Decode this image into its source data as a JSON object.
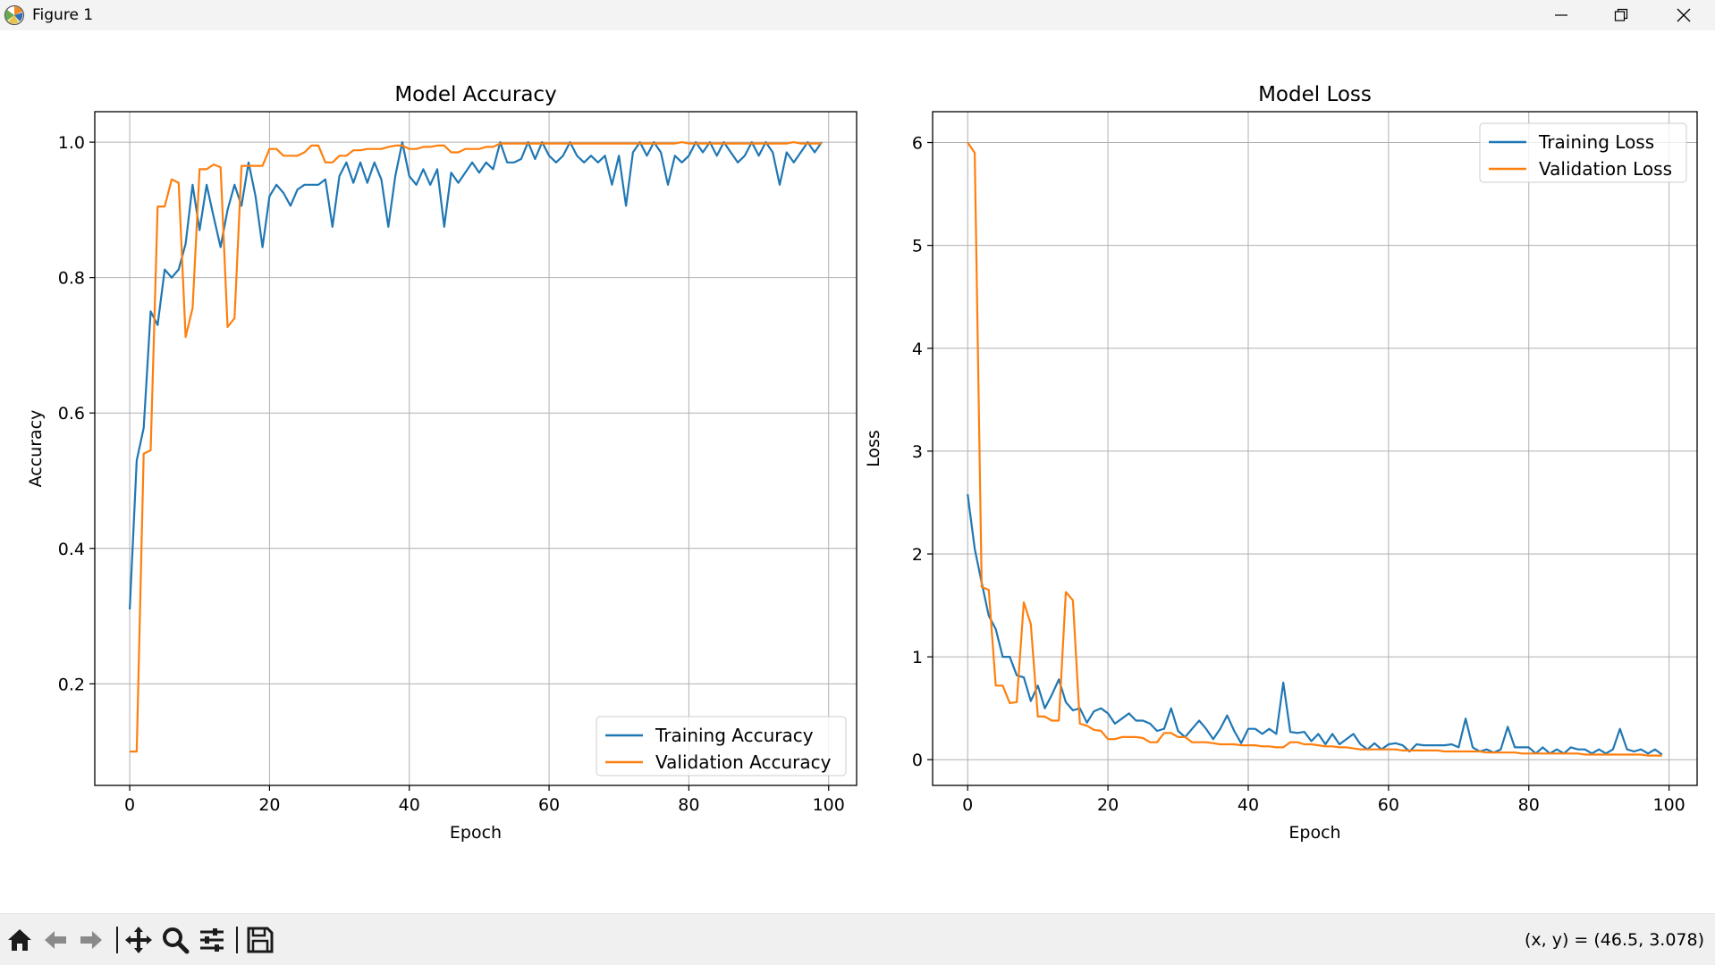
{
  "window": {
    "title": "Figure 1",
    "app_icon": "matplotlib-icon",
    "controls": [
      "minimize-icon",
      "restore-icon",
      "close-icon"
    ]
  },
  "toolbar": {
    "tools": [
      "home-icon",
      "back-arrow-icon",
      "forward-arrow-icon",
      "pan-move-icon",
      "zoom-magnifier-icon",
      "configure-subplots-icon",
      "save-floppy-icon"
    ],
    "coords_label": "(x, y) = (46.5, 3.078)"
  },
  "colors": {
    "training": "#1f77b4",
    "validation": "#ff7f0e",
    "grid": "#b0b0b0"
  },
  "chart_data": [
    {
      "type": "line",
      "title": "Model Accuracy",
      "xlabel": "Epoch",
      "ylabel": "Accuracy",
      "xlim": [
        -5,
        104
      ],
      "ylim": [
        0.05,
        1.045
      ],
      "xticks": [
        0,
        20,
        40,
        60,
        80,
        100
      ],
      "yticks": [
        0.2,
        0.4,
        0.6,
        0.8,
        1.0
      ],
      "xtick_labels": [
        "0",
        "20",
        "40",
        "60",
        "80",
        "100"
      ],
      "ytick_labels": [
        "0.2",
        "0.4",
        "0.6",
        "0.8",
        "1.0"
      ],
      "grid": true,
      "legend": "lower-right",
      "series": [
        {
          "name": "Training Accuracy",
          "color": "#1f77b4",
          "values": [
            0.31,
            0.53,
            0.578,
            0.75,
            0.73,
            0.812,
            0.8,
            0.812,
            0.85,
            0.937,
            0.87,
            0.937,
            0.89,
            0.845,
            0.9,
            0.937,
            0.906,
            0.97,
            0.92,
            0.845,
            0.92,
            0.937,
            0.925,
            0.906,
            0.93,
            0.937,
            0.937,
            0.937,
            0.945,
            0.875,
            0.95,
            0.97,
            0.94,
            0.97,
            0.94,
            0.97,
            0.945,
            0.875,
            0.95,
            1.0,
            0.95,
            0.937,
            0.96,
            0.937,
            0.96,
            0.875,
            0.955,
            0.94,
            0.955,
            0.97,
            0.955,
            0.97,
            0.96,
            1.0,
            0.97,
            0.97,
            0.975,
            1.0,
            0.975,
            1.0,
            0.98,
            0.97,
            0.98,
            1.0,
            0.98,
            0.97,
            0.98,
            0.97,
            0.98,
            0.937,
            0.98,
            0.906,
            0.985,
            1.0,
            0.98,
            1.0,
            0.985,
            0.937,
            0.98,
            0.97,
            0.98,
            1.0,
            0.985,
            1.0,
            0.98,
            1.0,
            0.985,
            0.97,
            0.98,
            1.0,
            0.98,
            1.0,
            0.985,
            0.937,
            0.985,
            0.97,
            0.985,
            1.0,
            0.985,
            1.0
          ]
        },
        {
          "name": "Validation Accuracy",
          "color": "#ff7f0e",
          "values": [
            0.1,
            0.1,
            0.54,
            0.545,
            0.905,
            0.905,
            0.945,
            0.94,
            0.712,
            0.755,
            0.96,
            0.96,
            0.967,
            0.963,
            0.727,
            0.74,
            0.965,
            0.965,
            0.965,
            0.965,
            0.99,
            0.99,
            0.98,
            0.98,
            0.98,
            0.985,
            0.995,
            0.995,
            0.97,
            0.97,
            0.98,
            0.98,
            0.988,
            0.988,
            0.99,
            0.99,
            0.99,
            0.993,
            0.995,
            0.995,
            0.99,
            0.99,
            0.993,
            0.993,
            0.995,
            0.995,
            0.985,
            0.985,
            0.99,
            0.99,
            0.99,
            0.993,
            0.993,
            0.998,
            0.998,
            0.998,
            0.998,
            0.998,
            0.998,
            0.998,
            0.998,
            0.998,
            0.998,
            0.998,
            0.998,
            0.998,
            0.998,
            0.998,
            0.998,
            0.998,
            0.998,
            0.998,
            0.998,
            0.998,
            0.998,
            0.998,
            0.998,
            0.998,
            0.998,
            1.0,
            0.998,
            0.998,
            0.998,
            0.998,
            0.998,
            0.998,
            0.998,
            0.998,
            0.998,
            0.998,
            0.998,
            0.998,
            0.998,
            0.998,
            0.998,
            1.0,
            0.998,
            0.998,
            0.998,
            0.998
          ]
        }
      ]
    },
    {
      "type": "line",
      "title": "Model Loss",
      "xlabel": "Epoch",
      "ylabel": "Loss",
      "xlim": [
        -5,
        104
      ],
      "ylim": [
        -0.25,
        6.3
      ],
      "xticks": [
        0,
        20,
        40,
        60,
        80,
        100
      ],
      "yticks": [
        0,
        1,
        2,
        3,
        4,
        5,
        6
      ],
      "xtick_labels": [
        "0",
        "20",
        "40",
        "60",
        "80",
        "100"
      ],
      "ytick_labels": [
        "0",
        "1",
        "2",
        "3",
        "4",
        "5",
        "6"
      ],
      "grid": true,
      "legend": "upper-right",
      "series": [
        {
          "name": "Training Loss",
          "color": "#1f77b4",
          "values": [
            2.58,
            2.05,
            1.72,
            1.4,
            1.27,
            1.0,
            1.0,
            0.82,
            0.8,
            0.57,
            0.72,
            0.5,
            0.63,
            0.78,
            0.56,
            0.48,
            0.5,
            0.36,
            0.47,
            0.5,
            0.45,
            0.35,
            0.4,
            0.45,
            0.38,
            0.38,
            0.35,
            0.28,
            0.3,
            0.5,
            0.28,
            0.22,
            0.3,
            0.38,
            0.3,
            0.2,
            0.3,
            0.43,
            0.28,
            0.16,
            0.3,
            0.3,
            0.25,
            0.3,
            0.25,
            0.75,
            0.27,
            0.26,
            0.27,
            0.18,
            0.25,
            0.15,
            0.25,
            0.15,
            0.2,
            0.25,
            0.15,
            0.1,
            0.16,
            0.1,
            0.15,
            0.16,
            0.14,
            0.08,
            0.15,
            0.14,
            0.14,
            0.14,
            0.14,
            0.15,
            0.12,
            0.4,
            0.12,
            0.08,
            0.1,
            0.07,
            0.1,
            0.32,
            0.12,
            0.12,
            0.12,
            0.06,
            0.12,
            0.06,
            0.1,
            0.06,
            0.12,
            0.1,
            0.1,
            0.06,
            0.1,
            0.06,
            0.1,
            0.3,
            0.1,
            0.08,
            0.1,
            0.06,
            0.1,
            0.05
          ]
        },
        {
          "name": "Validation Loss",
          "color": "#ff7f0e",
          "values": [
            6.0,
            5.9,
            1.68,
            1.65,
            0.72,
            0.72,
            0.55,
            0.56,
            1.53,
            1.32,
            0.42,
            0.42,
            0.38,
            0.38,
            1.63,
            1.55,
            0.35,
            0.33,
            0.29,
            0.28,
            0.2,
            0.2,
            0.22,
            0.22,
            0.22,
            0.21,
            0.17,
            0.17,
            0.26,
            0.26,
            0.22,
            0.22,
            0.17,
            0.17,
            0.17,
            0.16,
            0.15,
            0.15,
            0.15,
            0.14,
            0.14,
            0.14,
            0.13,
            0.13,
            0.12,
            0.12,
            0.17,
            0.17,
            0.15,
            0.15,
            0.14,
            0.13,
            0.13,
            0.12,
            0.12,
            0.11,
            0.1,
            0.1,
            0.1,
            0.1,
            0.1,
            0.1,
            0.09,
            0.09,
            0.09,
            0.09,
            0.09,
            0.09,
            0.08,
            0.08,
            0.08,
            0.08,
            0.08,
            0.08,
            0.07,
            0.07,
            0.07,
            0.07,
            0.07,
            0.06,
            0.06,
            0.06,
            0.06,
            0.06,
            0.06,
            0.06,
            0.06,
            0.06,
            0.05,
            0.05,
            0.05,
            0.05,
            0.05,
            0.05,
            0.05,
            0.05,
            0.05,
            0.04,
            0.04,
            0.04
          ]
        }
      ]
    }
  ]
}
